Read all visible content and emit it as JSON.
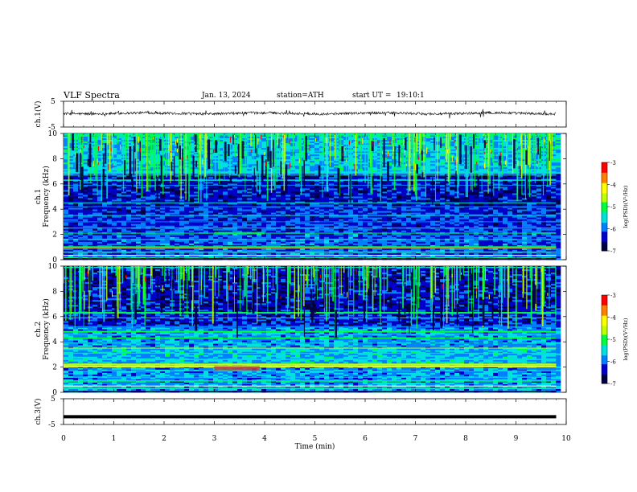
{
  "header": {
    "title": "VLF Spectra",
    "date": "Jan. 13, 2024",
    "station": "station=ATH",
    "start": "start UT =",
    "start_time": "19:10:1"
  },
  "chart_data": [
    {
      "type": "line",
      "ylabel": "ch.1(V)",
      "yticklabels": [
        "5",
        "-5"
      ],
      "ylim": [
        -5,
        5
      ],
      "description": "noisy waveform around 0 V",
      "x_range_min": [
        0,
        9.8
      ]
    },
    {
      "type": "heatmap",
      "ylabel": "ch.1\nFrequency (kHz)",
      "ylabel_line1": "ch.1",
      "ylabel_line2": "Frequency (kHz)",
      "yticks": [
        0,
        2,
        4,
        6,
        8,
        10
      ],
      "ylim": [
        0,
        10
      ],
      "x_range_min": [
        0,
        9.8
      ],
      "colorbar": {
        "label": "log(PSD)(V²/Hz)",
        "ticks": [
          -3,
          -4,
          -5,
          -6,
          -7
        ],
        "range": [
          -7,
          -3
        ]
      }
    },
    {
      "type": "heatmap",
      "ylabel": "ch.2\nFrequency (kHz)",
      "ylabel_line1": "ch.2",
      "ylabel_line2": "Frequency (kHz)",
      "yticks": [
        0,
        2,
        4,
        6,
        8,
        10
      ],
      "ylim": [
        0,
        10
      ],
      "x_range_min": [
        0,
        9.8
      ],
      "colorbar": {
        "label": "log(PSD)(V²/Hz)",
        "ticks": [
          -3,
          -4,
          -5,
          -6,
          -7
        ],
        "range": [
          -7,
          -3
        ]
      }
    },
    {
      "type": "line",
      "ylabel": "ch.3(V)",
      "yticklabels": [
        "5",
        "-5"
      ],
      "ylim": [
        -5,
        5
      ],
      "description": "flat thick line near -2 V",
      "value": -2,
      "x_range_min": [
        0,
        9.8
      ]
    }
  ],
  "xaxis": {
    "label": "Time (min)",
    "ticks": [
      0,
      1,
      2,
      3,
      4,
      5,
      6,
      7,
      8,
      9,
      10
    ],
    "xlim": [
      0,
      10
    ]
  },
  "colors": {
    "colormap": [
      "#000040",
      "#0000c8",
      "#0080ff",
      "#00e0e0",
      "#00ff40",
      "#c0ff00",
      "#ffff00",
      "#ff8000",
      "#ff0000",
      "#ffffff"
    ]
  }
}
